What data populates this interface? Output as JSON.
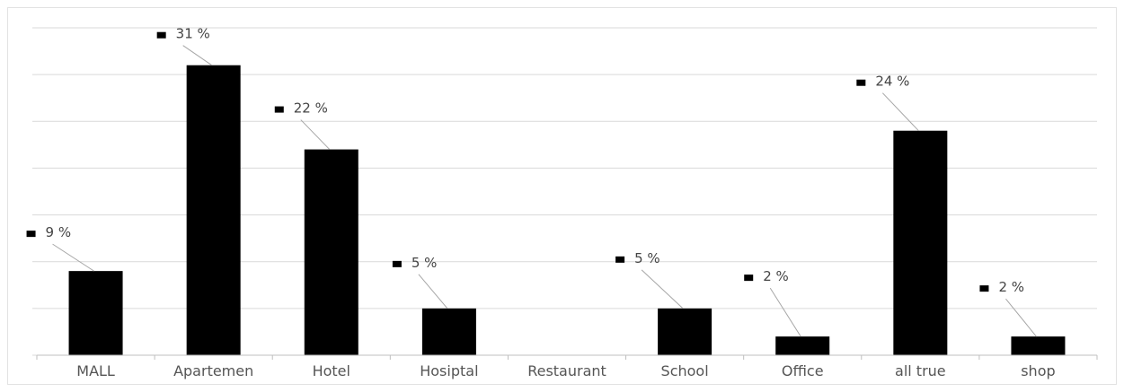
{
  "chart_data": {
    "type": "bar",
    "title": "",
    "xlabel": "",
    "ylabel": "",
    "categories": [
      "MALL",
      "Apartemen",
      "Hotel",
      "Hosiptal",
      "Restaurant",
      "School",
      "Office",
      "all true",
      "shop"
    ],
    "values": [
      9,
      31,
      22,
      5,
      0,
      5,
      2,
      24,
      2
    ],
    "value_labels": [
      "9 %",
      "31 %",
      "22 %",
      "5 %",
      "",
      "5 %",
      "2 %",
      "24 %",
      "2 %"
    ],
    "ylim": [
      0,
      35
    ],
    "grid": true,
    "legend": "none",
    "bar_color": "#000000",
    "grid_color": "#d9d9d9",
    "label_color": "#555555"
  }
}
